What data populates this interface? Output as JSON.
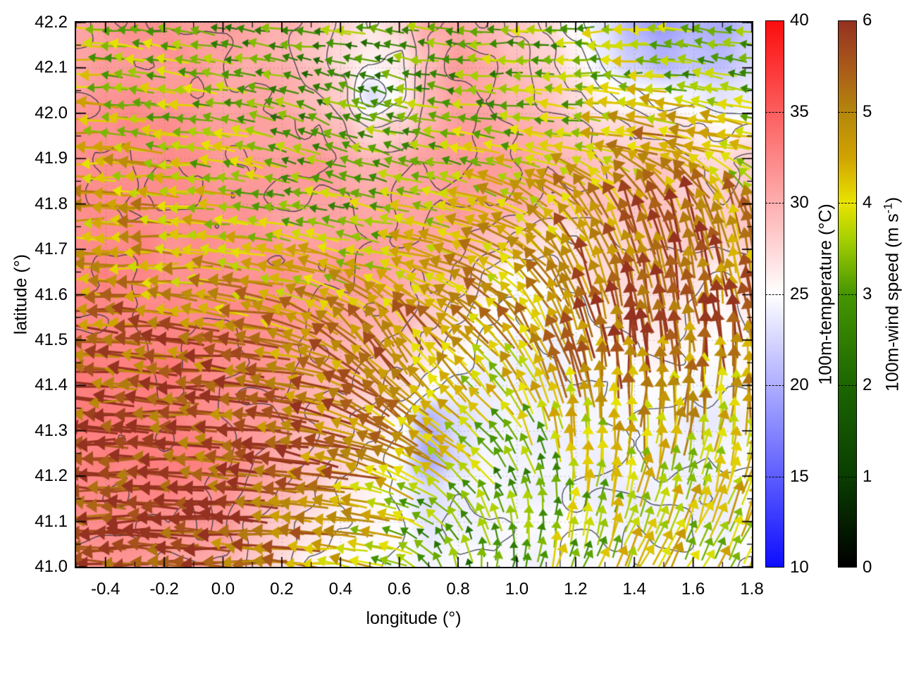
{
  "chart_data": {
    "type": "heatmap",
    "variant": "geographic map: 100m temperature shading with contour lines and 100m wind vector field overlay",
    "title": "",
    "xlabel": "longitude (°)",
    "ylabel": "latitude (°)",
    "xlim": [
      -0.5,
      1.8
    ],
    "ylim": [
      41.0,
      42.2
    ],
    "xtick_values": [
      -0.4,
      -0.2,
      0.0,
      0.2,
      0.4,
      0.6,
      0.8,
      1.0,
      1.2,
      1.4,
      1.6,
      1.8
    ],
    "xtick_labels": [
      "-0.4",
      "-0.2",
      "0.0",
      "0.2",
      "0.4",
      "0.6",
      "0.8",
      "1.0",
      "1.2",
      "1.4",
      "1.6",
      "1.8"
    ],
    "ytick_values": [
      41.0,
      41.1,
      41.2,
      41.3,
      41.4,
      41.5,
      41.6,
      41.7,
      41.8,
      41.9,
      42.0,
      42.1,
      42.2
    ],
    "ytick_labels": [
      "41.0",
      "41.1",
      "41.2",
      "41.3",
      "41.4",
      "41.5",
      "41.6",
      "41.7",
      "41.8",
      "41.9",
      "42.0",
      "42.1",
      "42.2"
    ],
    "minor_xtick_step": 0.1,
    "minor_ytick_step": 0.05,
    "grid": "dotted lines at major ticks",
    "temperature_colorbar": {
      "label": "100m-temperature (°C)",
      "min": 10,
      "max": 40,
      "tick_values": [
        10,
        15,
        20,
        25,
        30,
        35,
        40
      ],
      "tick_labels": [
        "10",
        "15",
        "20",
        "25",
        "30",
        "35",
        "40"
      ],
      "stops": [
        {
          "v": 10,
          "c": "#0d0dff"
        },
        {
          "v": 25,
          "c": "#ffffff"
        },
        {
          "v": 40,
          "c": "#fb0d0d"
        }
      ]
    },
    "wind_colorbar": {
      "label_prefix": "100m-wind speed (m s",
      "label_sup": "-1",
      "label_suffix": ")",
      "min": 0,
      "max": 6,
      "tick_values": [
        0,
        1,
        2,
        3,
        4,
        5,
        6
      ],
      "tick_labels": [
        "0",
        "1",
        "2",
        "3",
        "4",
        "5",
        "6"
      ],
      "stops": [
        {
          "v": 0.0,
          "c": "#000000"
        },
        {
          "v": 1.0,
          "c": "#0a3e00"
        },
        {
          "v": 2.0,
          "c": "#1c6600"
        },
        {
          "v": 3.0,
          "c": "#459600"
        },
        {
          "v": 3.6,
          "c": "#a6cf00"
        },
        {
          "v": 4.0,
          "c": "#e9e400"
        },
        {
          "v": 4.5,
          "c": "#d0a300"
        },
        {
          "v": 5.0,
          "c": "#b5860b"
        },
        {
          "v": 5.5,
          "c": "#a9591a"
        },
        {
          "v": 6.0,
          "c": "#943120"
        }
      ]
    },
    "contour_color": "rgba(45,50,62,0.88)",
    "contour_levels_degC": [
      24.6,
      26.2,
      27.8,
      29.4,
      31.0,
      32.2
    ],
    "temperature_field": {
      "units": "degC",
      "lon": {
        "start": -0.5,
        "step": 0.1,
        "n": 24
      },
      "lat": {
        "start": 42.2,
        "step": -0.08,
        "n": 16
      },
      "rows_north_to_south": true,
      "values_degC": [
        [
          31,
          31,
          31.5,
          31.5,
          31,
          31,
          30.5,
          30,
          29,
          27.5,
          26.5,
          27.5,
          30,
          30.5,
          30,
          29,
          27.5,
          25,
          23,
          20.5,
          19,
          20,
          19.5,
          21.5
        ],
        [
          31,
          31.5,
          31.5,
          31.5,
          31.5,
          31,
          30.5,
          30,
          28.5,
          27,
          26,
          26.5,
          29.5,
          31,
          30.5,
          29.5,
          28,
          26,
          24,
          22,
          20,
          21,
          20.5,
          22.5
        ],
        [
          31,
          31.5,
          32,
          31.5,
          31.5,
          31,
          31,
          30.5,
          29.5,
          28,
          23,
          26,
          30,
          31,
          30.5,
          30,
          29,
          27.5,
          26,
          25,
          24.5,
          24,
          23,
          24
        ],
        [
          31.5,
          31.5,
          32,
          32,
          31.5,
          31.5,
          31,
          31,
          30.5,
          29.5,
          27.5,
          28.5,
          30.5,
          31,
          31,
          30.5,
          30,
          29,
          28,
          27.5,
          27,
          26.5,
          25.5,
          26.5
        ],
        [
          31.5,
          32,
          32,
          32,
          32,
          31.5,
          31.5,
          31,
          31,
          30.5,
          30,
          30.5,
          31,
          31,
          31,
          30.5,
          30,
          29.5,
          29,
          28.5,
          28.5,
          28,
          27.5,
          28
        ],
        [
          32,
          32,
          32,
          32,
          32,
          31.5,
          31.5,
          31,
          31,
          31,
          30.5,
          31,
          31,
          31,
          30.5,
          30,
          29.5,
          29,
          29,
          28.5,
          28.5,
          28.5,
          28,
          28.5
        ],
        [
          32,
          32,
          32.5,
          32,
          32,
          31.5,
          31.5,
          31,
          31,
          31,
          31,
          31,
          30.5,
          30,
          29,
          28,
          27,
          26.5,
          27.5,
          28,
          28,
          28.5,
          28,
          28
        ],
        [
          32,
          32.5,
          32.5,
          32,
          32,
          31.5,
          31.5,
          31.5,
          31,
          31,
          31,
          30.5,
          30,
          28.5,
          26,
          24.5,
          25.5,
          26.5,
          27,
          27.5,
          27.5,
          27,
          26,
          27.5
        ],
        [
          32.5,
          32.5,
          32.5,
          32.5,
          32,
          32,
          31.5,
          31.5,
          31,
          30.5,
          30.5,
          30,
          28.5,
          26.5,
          25,
          24.5,
          24.5,
          25,
          26,
          26.5,
          26.5,
          26,
          25.5,
          26.5
        ],
        [
          32.5,
          33,
          33,
          32.5,
          32.5,
          32,
          31.5,
          31,
          30.5,
          30,
          29.5,
          28.5,
          27,
          25.5,
          24.5,
          24,
          24.5,
          25,
          25.5,
          25.5,
          26,
          25.5,
          25,
          25.5
        ],
        [
          33,
          33,
          33,
          33,
          32.5,
          32,
          31.5,
          31,
          30,
          29.5,
          28.5,
          27,
          25.5,
          24.5,
          24,
          24,
          24,
          24.5,
          24.5,
          25,
          25,
          24.5,
          24.5,
          25
        ],
        [
          33,
          33,
          33,
          33,
          32.5,
          32,
          31.5,
          30.5,
          29.5,
          28.5,
          27,
          25,
          20,
          22.5,
          23.5,
          24,
          24,
          24,
          24.5,
          24.5,
          24.5,
          24,
          24,
          24.5
        ],
        [
          32.5,
          33,
          33,
          32.5,
          32.5,
          32,
          31,
          30,
          29,
          27.5,
          26,
          24.5,
          19.5,
          22,
          24,
          24,
          24,
          24,
          24,
          24.5,
          24,
          24,
          24,
          24.5
        ],
        [
          32.5,
          32.5,
          32.5,
          32.5,
          32,
          31.5,
          30.5,
          29.5,
          28,
          26.5,
          25.5,
          24.5,
          23,
          24,
          24.5,
          24,
          24,
          24.5,
          24,
          24,
          24.5,
          24,
          24,
          24.5
        ],
        [
          32,
          32,
          32,
          32,
          31.5,
          31,
          29.5,
          28.5,
          27,
          26,
          25.5,
          25,
          23.5,
          24.5,
          24.5,
          24.5,
          24.5,
          25,
          24.5,
          24.5,
          24.5,
          24.5,
          24.5,
          25
        ],
        [
          31.5,
          31.5,
          31.5,
          31,
          30.5,
          30,
          28.5,
          27.5,
          26,
          25.5,
          25,
          24.5,
          24,
          24.5,
          25,
          24.5,
          24.5,
          25,
          24.5,
          24.5,
          25,
          24.5,
          24.5,
          25
        ]
      ]
    },
    "wind_field": {
      "units": "m/s, [u_east, v_north]",
      "lon": {
        "start": -0.5,
        "step": 0.2091,
        "n": 12
      },
      "lat": {
        "start": 42.2,
        "step": -0.1333,
        "n": 10
      },
      "rows_north_to_south": true,
      "uv_ms": [
        [
          [
            -3.2,
            0.3
          ],
          [
            -3.6,
            0.2
          ],
          [
            -3.0,
            0.5
          ],
          [
            -2.6,
            0.3
          ],
          [
            -3.0,
            0.1
          ],
          [
            -2.8,
            0.4
          ],
          [
            -3.0,
            0.2
          ],
          [
            -3.3,
            -0.2
          ],
          [
            -3.0,
            0.1
          ],
          [
            -3.6,
            -0.3
          ],
          [
            -3.3,
            0.4
          ],
          [
            -3.0,
            0.1
          ]
        ],
        [
          [
            -3.9,
            0.2
          ],
          [
            -3.6,
            0.4
          ],
          [
            -3.3,
            0.3
          ],
          [
            -2.8,
            0.6
          ],
          [
            -2.5,
            0.9
          ],
          [
            -2.6,
            0.6
          ],
          [
            -3.0,
            0.5
          ],
          [
            -3.0,
            0.1
          ],
          [
            -3.3,
            0.3
          ],
          [
            -3.6,
            0.1
          ],
          [
            -3.3,
            0.6
          ],
          [
            -3.1,
            0.4
          ]
        ],
        [
          [
            -4.1,
            0.1
          ],
          [
            -3.9,
            0.3
          ],
          [
            -3.6,
            0.5
          ],
          [
            -3.1,
            0.9
          ],
          [
            -2.6,
            1.1
          ],
          [
            -2.9,
            0.9
          ],
          [
            -3.1,
            0.6
          ],
          [
            -3.6,
            0.6
          ],
          [
            -3.9,
            0.6
          ],
          [
            -4.6,
            1.0
          ],
          [
            -4.9,
            0.9
          ],
          [
            -4.4,
            0.6
          ]
        ],
        [
          [
            -4.3,
            0.1
          ],
          [
            -4.6,
            0.2
          ],
          [
            -4.1,
            0.4
          ],
          [
            -3.6,
            0.6
          ],
          [
            -3.1,
            0.6
          ],
          [
            -3.3,
            0.6
          ],
          [
            -3.6,
            0.9
          ],
          [
            -4.1,
            1.6
          ],
          [
            -3.1,
            3.6
          ],
          [
            -2.1,
            4.9
          ],
          [
            -1.6,
            5.1
          ],
          [
            -1.3,
            4.6
          ]
        ],
        [
          [
            -4.6,
            0.1
          ],
          [
            -4.6,
            0.1
          ],
          [
            -4.3,
            0.4
          ],
          [
            -4.1,
            0.6
          ],
          [
            -3.9,
            0.9
          ],
          [
            -4.1,
            1.1
          ],
          [
            -4.6,
            1.6
          ],
          [
            -3.6,
            2.6
          ],
          [
            -2.1,
            4.6
          ],
          [
            -1.1,
            5.3
          ],
          [
            -0.9,
            5.3
          ],
          [
            -0.9,
            4.9
          ]
        ],
        [
          [
            -5.3,
            0.3
          ],
          [
            -5.3,
            0.4
          ],
          [
            -5.1,
            0.6
          ],
          [
            -4.9,
            1.1
          ],
          [
            -4.1,
            2.6
          ],
          [
            -2.6,
            4.6
          ],
          [
            -3.6,
            3.1
          ],
          [
            -3.1,
            3.6
          ],
          [
            -1.6,
            5.1
          ],
          [
            -0.6,
            5.6
          ],
          [
            -0.4,
            5.4
          ],
          [
            -0.6,
            5.1
          ]
        ],
        [
          [
            -5.6,
            0.1
          ],
          [
            -5.6,
            0.3
          ],
          [
            -5.6,
            0.4
          ],
          [
            -5.3,
            0.6
          ],
          [
            -5.1,
            1.6
          ],
          [
            -3.6,
            3.6
          ],
          [
            -3.1,
            3.1
          ],
          [
            -2.1,
            3.1
          ],
          [
            -0.9,
            4.6
          ],
          [
            0.1,
            5.1
          ],
          [
            0.3,
            4.6
          ],
          [
            0.1,
            4.6
          ]
        ],
        [
          [
            -5.9,
            0.1
          ],
          [
            -5.9,
            0.1
          ],
          [
            -5.6,
            0.3
          ],
          [
            -5.6,
            0.6
          ],
          [
            -5.1,
            1.1
          ],
          [
            -4.6,
            2.1
          ],
          [
            -3.6,
            2.6
          ],
          [
            -1.6,
            2.6
          ],
          [
            -0.6,
            3.6
          ],
          [
            0.6,
            4.1
          ],
          [
            0.6,
            4.1
          ],
          [
            0.9,
            3.9
          ]
        ],
        [
          [
            -6.0,
            0.1
          ],
          [
            -6.0,
            0.1
          ],
          [
            -5.9,
            0.1
          ],
          [
            -5.6,
            0.4
          ],
          [
            -5.1,
            0.6
          ],
          [
            -4.1,
            1.1
          ],
          [
            -2.1,
            2.1
          ],
          [
            -0.9,
            2.9
          ],
          [
            0.6,
            3.3
          ],
          [
            1.1,
            3.6
          ],
          [
            1.3,
            3.6
          ],
          [
            1.6,
            3.6
          ]
        ],
        [
          [
            -5.6,
            0.1
          ],
          [
            -5.9,
            0.1
          ],
          [
            -5.6,
            0.1
          ],
          [
            -5.3,
            0.1
          ],
          [
            -4.6,
            0.4
          ],
          [
            -3.1,
            0.9
          ],
          [
            -1.1,
            2.6
          ],
          [
            0.6,
            3.1
          ],
          [
            1.1,
            3.3
          ],
          [
            1.6,
            3.4
          ],
          [
            1.9,
            3.4
          ],
          [
            1.9,
            3.6
          ]
        ]
      ]
    }
  }
}
